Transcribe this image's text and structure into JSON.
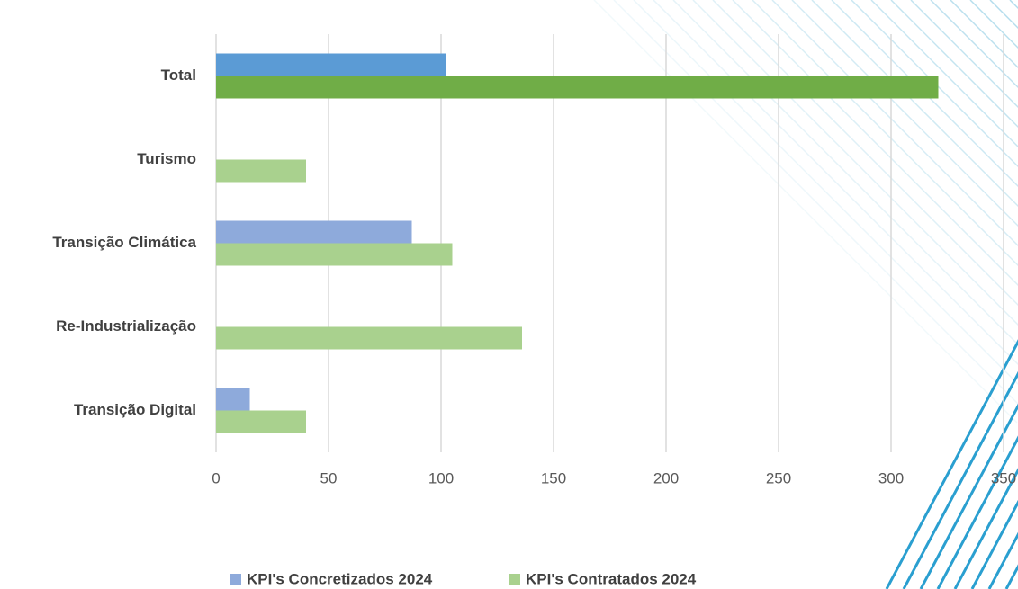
{
  "chart_data": {
    "type": "hbar",
    "categories": [
      "Total",
      "Turismo",
      "Transição Climática",
      "Re-Industrialização",
      "Transição Digital"
    ],
    "series": [
      {
        "name": "KPI's Concretizados 2024",
        "color": "#8eaadb",
        "point_colors": [
          "#5b9bd5",
          "#8eaadb",
          "#8eaadb",
          "#8eaadb",
          "#8eaadb"
        ],
        "values": [
          102,
          null,
          87,
          null,
          15
        ]
      },
      {
        "name": "KPI's Contratados 2024",
        "color": "#a9d18e",
        "point_colors": [
          "#70ad47",
          "#a9d18e",
          "#a9d18e",
          "#a9d18e",
          "#a9d18e"
        ],
        "values": [
          321,
          40,
          105,
          136,
          40
        ]
      }
    ],
    "xlim": [
      0,
      350
    ],
    "xticks": [
      0,
      50,
      100,
      150,
      200,
      250,
      300,
      350
    ],
    "grid": true
  }
}
